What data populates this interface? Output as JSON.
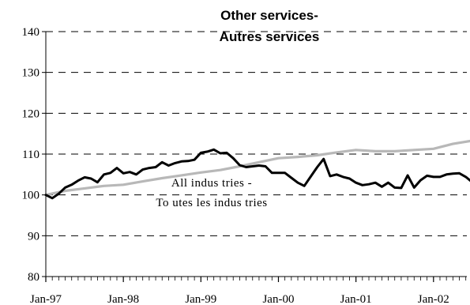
{
  "chart_data": {
    "type": "line",
    "title_lines": [
      "Other services-",
      "Autres services"
    ],
    "y_ticks": [
      "140",
      "130",
      "120",
      "110",
      "100",
      "90",
      "80"
    ],
    "ylim": [
      80,
      140
    ],
    "x_tick_labels": [
      "Jan-97",
      "Jan-98",
      "Jan-99",
      "Jan-00",
      "Jan-01",
      "Jan-02"
    ],
    "x_tick_months": [
      0,
      12,
      24,
      36,
      48,
      60
    ],
    "x_month_range": [
      0,
      71
    ],
    "grid": "horizontal dashed",
    "annotation_lines": [
      "All indus tries -",
      "To utes les indus tries"
    ],
    "colors": {
      "other_services": "#000000",
      "all_industries": "#b8b8b8"
    },
    "series": [
      {
        "key": "other_services",
        "x_months": [
          0,
          1,
          2,
          3,
          4,
          5,
          6,
          7,
          8,
          9,
          10,
          11,
          12,
          13,
          14,
          15,
          16,
          17,
          18,
          19,
          20,
          21,
          22,
          23,
          24,
          25,
          26,
          27,
          28,
          29,
          30,
          31,
          32,
          33,
          34,
          35,
          36,
          37,
          38,
          39,
          40,
          41,
          42,
          43,
          44,
          45,
          46,
          47,
          48,
          49,
          50,
          51,
          52,
          53,
          54,
          55,
          56,
          57,
          58,
          59,
          60,
          61,
          62,
          63,
          64,
          65,
          66
        ],
        "values": [
          100,
          99.2,
          100.3,
          101.8,
          102.5,
          103.5,
          104.3,
          104.0,
          103.1,
          105.0,
          105.4,
          106.6,
          105.3,
          105.6,
          105.0,
          106.2,
          106.6,
          106.8,
          108.0,
          107.2,
          107.8,
          108.2,
          108.3,
          108.6,
          110.3,
          110.6,
          111.1,
          110.2,
          110.3,
          109.0,
          107.3,
          106.8,
          107.0,
          107.2,
          107.0,
          105.4,
          105.4,
          105.4,
          104.2,
          103.0,
          102.2,
          104.5,
          106.8,
          108.8,
          104.6,
          105.0,
          104.4,
          104.0,
          103.0,
          102.4,
          102.6,
          103.0,
          102.0,
          103.0,
          101.8,
          101.7,
          104.8,
          101.8,
          103.6,
          104.7,
          104.4,
          104.4,
          105.0,
          105.2,
          105.3,
          104.4,
          103.1
        ]
      },
      {
        "key": "all_industries",
        "x_months": [
          0,
          3,
          6,
          9,
          12,
          15,
          18,
          21,
          24,
          27,
          30,
          33,
          36,
          39,
          42,
          45,
          48,
          51,
          54,
          57,
          60,
          63,
          66
        ],
        "values": [
          100,
          101.0,
          101.6,
          102.2,
          102.5,
          103.3,
          104.1,
          104.8,
          105.5,
          106.1,
          107.0,
          108.0,
          109.0,
          109.3,
          109.7,
          110.4,
          111.0,
          110.7,
          110.7,
          111.0,
          111.3,
          112.5,
          113.3
        ]
      }
    ]
  }
}
